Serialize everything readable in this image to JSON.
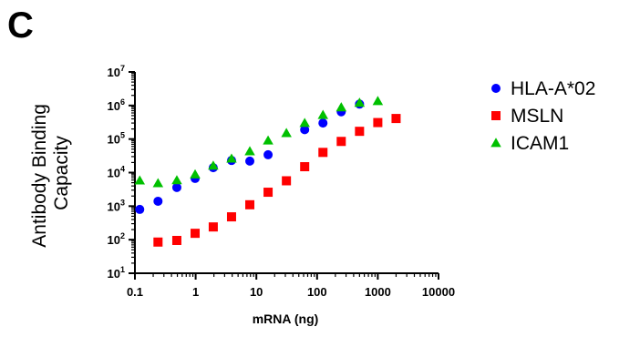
{
  "panel_label": "C",
  "chart_data": {
    "type": "scatter",
    "xlabel": "mRNA (ng)",
    "ylabel_lines": [
      "Antibody Binding",
      "Capacity"
    ],
    "x_scale": "log",
    "y_scale": "log",
    "xlim": [
      0.1,
      10000
    ],
    "ylim": [
      10,
      10000000
    ],
    "x_ticks": [
      0.1,
      1,
      10,
      100,
      1000,
      10000
    ],
    "x_tick_labels": [
      "0.1",
      "1",
      "10",
      "100",
      "1000",
      "10000"
    ],
    "y_tick_exponents": [
      1,
      2,
      3,
      4,
      5,
      6,
      7
    ],
    "y_tick_base": "10",
    "grid": false,
    "legend_position": "right",
    "series": [
      {
        "name": "HLA-A*02",
        "marker": "circle",
        "color": "#0000ff",
        "x": [
          0.12,
          0.24,
          0.49,
          0.98,
          1.95,
          3.9,
          7.8,
          15.6,
          62.5,
          125,
          250,
          500
        ],
        "y": [
          800,
          1400,
          3600,
          6700,
          14000,
          23000,
          22000,
          34000,
          190000,
          300000,
          650000,
          1100000
        ]
      },
      {
        "name": "MSLN",
        "marker": "square",
        "color": "#ff0000",
        "x": [
          0.24,
          0.49,
          0.98,
          1.95,
          3.9,
          7.8,
          15.6,
          31.25,
          62.5,
          125,
          250,
          500,
          1000,
          2000
        ],
        "y": [
          85,
          95,
          155,
          240,
          480,
          1100,
          2600,
          5700,
          15000,
          40000,
          85000,
          170000,
          310000,
          410000
        ]
      },
      {
        "name": "ICAM1",
        "marker": "triangle",
        "color": "#00c000",
        "x": [
          0.12,
          0.24,
          0.49,
          0.98,
          1.95,
          3.9,
          7.8,
          15.6,
          31.25,
          62.5,
          125,
          250,
          500,
          1000
        ],
        "y": [
          5800,
          4800,
          5900,
          8800,
          16000,
          26000,
          43000,
          90000,
          150000,
          300000,
          520000,
          880000,
          1200000,
          1350000
        ]
      }
    ]
  }
}
